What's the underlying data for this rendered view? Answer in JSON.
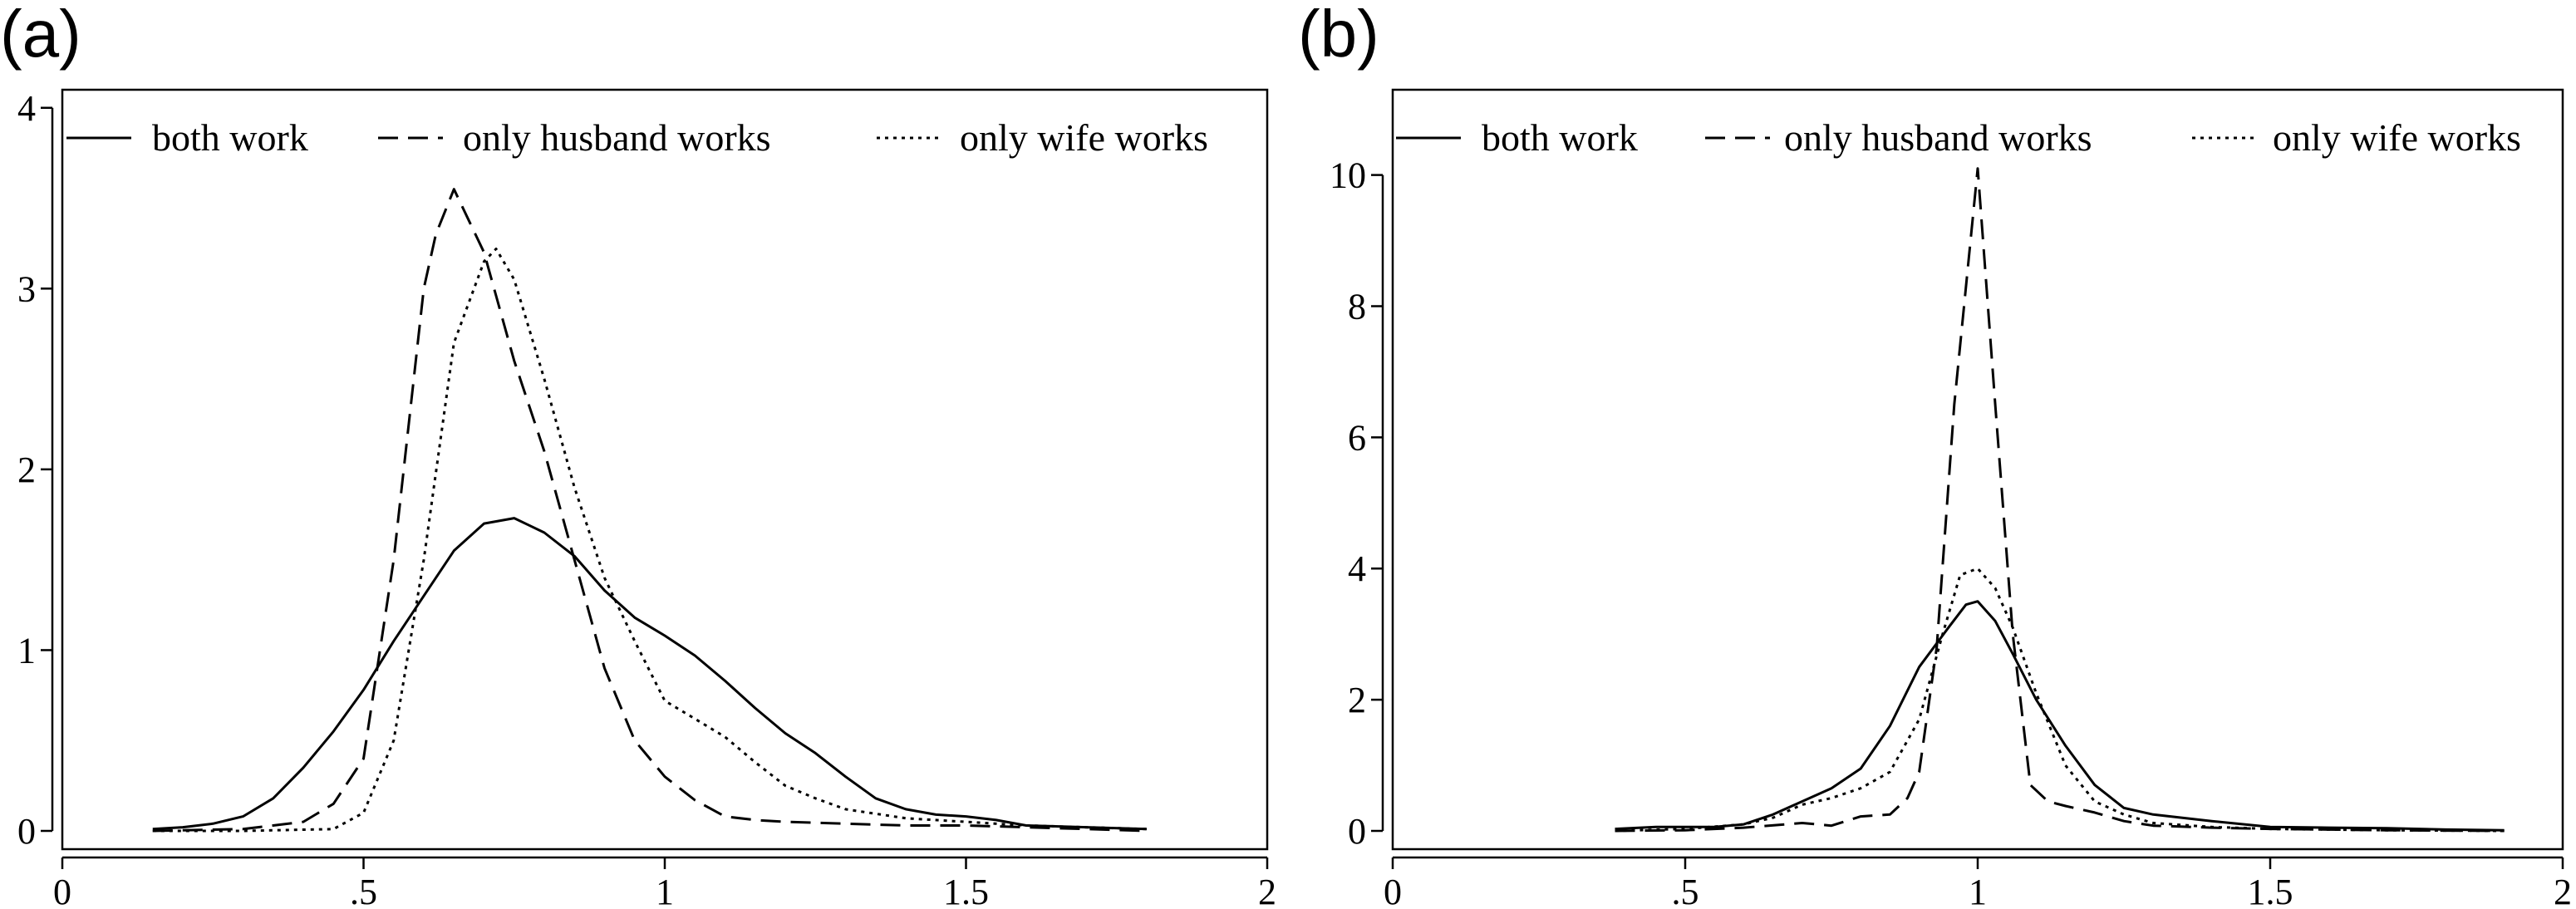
{
  "chart_data": [
    {
      "type": "line",
      "panel_label": "(a)",
      "title": "",
      "xlabel": "",
      "ylabel": "",
      "xlim": [
        0,
        2
      ],
      "ylim": [
        0,
        4.1
      ],
      "xticks": [
        0,
        0.5,
        1,
        1.5,
        2
      ],
      "xtick_labels": [
        "0",
        ".5",
        "1",
        "1.5",
        "2"
      ],
      "yticks": [
        0,
        1,
        2,
        3,
        4
      ],
      "ytick_labels": [
        "0",
        "1",
        "2",
        "3",
        "4"
      ],
      "grid": false,
      "legend_position": "top",
      "series": [
        {
          "name": "both work",
          "style": "solid",
          "x": [
            0.15,
            0.2,
            0.25,
            0.3,
            0.35,
            0.4,
            0.45,
            0.5,
            0.55,
            0.6,
            0.65,
            0.7,
            0.75,
            0.8,
            0.85,
            0.9,
            0.95,
            1.0,
            1.05,
            1.1,
            1.15,
            1.2,
            1.25,
            1.3,
            1.35,
            1.4,
            1.45,
            1.5,
            1.55,
            1.6,
            1.7,
            1.8
          ],
          "y": [
            0.01,
            0.02,
            0.04,
            0.08,
            0.18,
            0.35,
            0.55,
            0.78,
            1.05,
            1.3,
            1.55,
            1.7,
            1.73,
            1.65,
            1.52,
            1.33,
            1.18,
            1.08,
            0.97,
            0.83,
            0.68,
            0.54,
            0.43,
            0.3,
            0.18,
            0.12,
            0.09,
            0.08,
            0.06,
            0.03,
            0.02,
            0.01
          ]
        },
        {
          "name": "only husband works",
          "style": "dashed",
          "x": [
            0.15,
            0.3,
            0.4,
            0.45,
            0.5,
            0.55,
            0.6,
            0.62,
            0.65,
            0.7,
            0.75,
            0.8,
            0.85,
            0.9,
            0.95,
            1.0,
            1.05,
            1.1,
            1.15,
            1.2,
            1.3,
            1.4,
            1.5,
            1.6,
            1.8
          ],
          "y": [
            0.0,
            0.01,
            0.05,
            0.15,
            0.4,
            1.5,
            3.0,
            3.3,
            3.55,
            3.2,
            2.6,
            2.1,
            1.5,
            0.9,
            0.5,
            0.3,
            0.17,
            0.08,
            0.06,
            0.05,
            0.04,
            0.03,
            0.03,
            0.02,
            0.0
          ]
        },
        {
          "name": "only wife works",
          "style": "dotted",
          "x": [
            0.15,
            0.3,
            0.45,
            0.5,
            0.55,
            0.6,
            0.65,
            0.7,
            0.72,
            0.75,
            0.8,
            0.85,
            0.9,
            0.95,
            1.0,
            1.05,
            1.1,
            1.15,
            1.2,
            1.25,
            1.3,
            1.4,
            1.5,
            1.6,
            1.8
          ],
          "y": [
            0.0,
            0.0,
            0.01,
            0.1,
            0.5,
            1.5,
            2.7,
            3.15,
            3.22,
            3.05,
            2.5,
            1.9,
            1.4,
            1.05,
            0.72,
            0.62,
            0.52,
            0.38,
            0.25,
            0.18,
            0.12,
            0.07,
            0.05,
            0.03,
            0.01
          ]
        }
      ]
    },
    {
      "type": "line",
      "panel_label": "(b)",
      "title": "",
      "xlabel": "",
      "ylabel": "",
      "xlim": [
        0,
        2
      ],
      "ylim": [
        0,
        11.3
      ],
      "xticks": [
        0,
        0.5,
        1,
        1.5,
        2
      ],
      "xtick_labels": [
        "0",
        ".5",
        "1",
        "1.5",
        "2"
      ],
      "yticks": [
        0,
        2,
        4,
        6,
        8,
        10
      ],
      "ytick_labels": [
        "0",
        "2",
        "4",
        "6",
        "8",
        "10"
      ],
      "grid": false,
      "legend_position": "top",
      "series": [
        {
          "name": "both work",
          "style": "solid",
          "x": [
            0.38,
            0.45,
            0.5,
            0.55,
            0.6,
            0.65,
            0.7,
            0.75,
            0.8,
            0.85,
            0.9,
            0.95,
            0.98,
            1.0,
            1.03,
            1.06,
            1.1,
            1.15,
            1.2,
            1.25,
            1.3,
            1.4,
            1.5,
            1.6,
            1.7,
            1.8,
            1.9
          ],
          "y": [
            0.03,
            0.06,
            0.06,
            0.06,
            0.1,
            0.25,
            0.45,
            0.65,
            0.95,
            1.6,
            2.5,
            3.1,
            3.45,
            3.5,
            3.2,
            2.7,
            2.0,
            1.3,
            0.7,
            0.35,
            0.25,
            0.15,
            0.06,
            0.05,
            0.04,
            0.02,
            0.01
          ]
        },
        {
          "name": "only husband works",
          "style": "dashed",
          "x": [
            0.38,
            0.5,
            0.6,
            0.7,
            0.75,
            0.8,
            0.85,
            0.88,
            0.9,
            0.93,
            0.96,
            1.0,
            1.03,
            1.06,
            1.09,
            1.12,
            1.15,
            1.2,
            1.25,
            1.3,
            1.4,
            1.5,
            1.6,
            1.7,
            1.9
          ],
          "y": [
            0.0,
            0.01,
            0.05,
            0.12,
            0.08,
            0.22,
            0.25,
            0.5,
            0.9,
            2.8,
            6.5,
            10.1,
            6.5,
            3.0,
            0.7,
            0.45,
            0.38,
            0.28,
            0.15,
            0.08,
            0.05,
            0.03,
            0.02,
            0.01,
            0.0
          ]
        },
        {
          "name": "only wife works",
          "style": "dotted",
          "x": [
            0.38,
            0.5,
            0.6,
            0.65,
            0.7,
            0.75,
            0.8,
            0.85,
            0.9,
            0.94,
            0.97,
            1.0,
            1.03,
            1.06,
            1.1,
            1.15,
            1.2,
            1.25,
            1.3,
            1.4,
            1.5,
            1.6,
            1.7,
            1.9
          ],
          "y": [
            0.0,
            0.03,
            0.1,
            0.2,
            0.4,
            0.5,
            0.65,
            0.9,
            1.7,
            3.0,
            3.9,
            4.0,
            3.7,
            3.1,
            2.1,
            1.0,
            0.45,
            0.25,
            0.12,
            0.06,
            0.03,
            0.02,
            0.01,
            0.0
          ]
        }
      ]
    }
  ]
}
